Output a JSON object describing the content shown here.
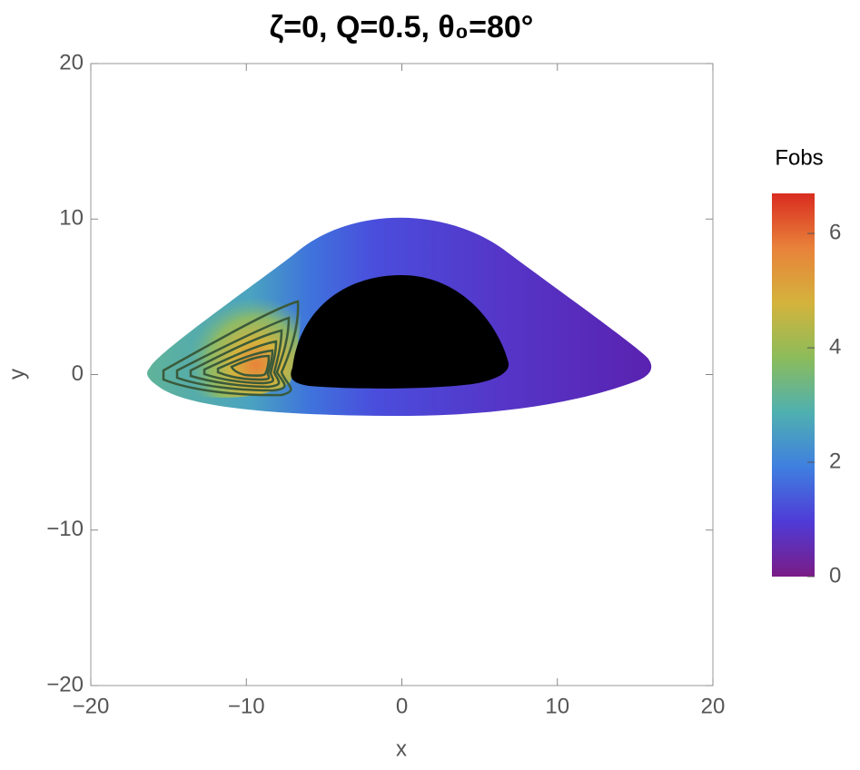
{
  "chart_data": {
    "type": "density",
    "title": "ζ=0, Q=0.5, θ₀=80°",
    "xlabel": "x",
    "ylabel": "y",
    "xlim": [
      -20,
      20
    ],
    "ylim": [
      -20,
      20
    ],
    "xticks": [
      {
        "value": -20,
        "label": "−20"
      },
      {
        "value": -10,
        "label": "−10"
      },
      0,
      10,
      20
    ],
    "yticks": [
      {
        "value": -20,
        "label": "−20"
      },
      {
        "value": -10,
        "label": "−10"
      },
      0,
      10,
      20
    ],
    "colorbar": {
      "title": "Fobs",
      "lim": [
        0,
        6.7
      ],
      "ticks": [
        0,
        2,
        4,
        6
      ],
      "colors": [
        "#7a1c86",
        "#4f3bd6",
        "#3f7fe0",
        "#4fb0b0",
        "#8cbc5a",
        "#d4b33c",
        "#e8823a",
        "#d92c20"
      ]
    }
  }
}
